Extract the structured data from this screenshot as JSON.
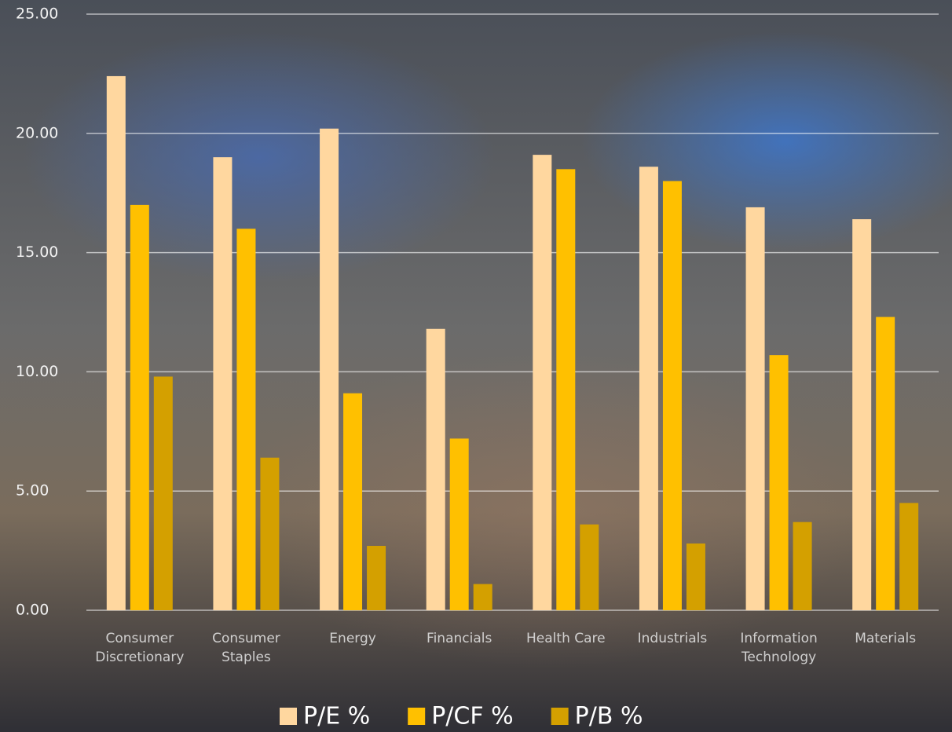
{
  "chart_data": {
    "type": "bar",
    "categories": [
      "Consumer Discretionary",
      "Consumer Staples",
      "Energy",
      "Financials",
      "Health Care",
      "Industrials",
      "Information Technology",
      "Materials"
    ],
    "series": [
      {
        "name": "P/E %",
        "color": "#ffd79f",
        "values": [
          22.4,
          19.0,
          20.2,
          11.8,
          19.1,
          18.6,
          16.9,
          16.4
        ]
      },
      {
        "name": "P/CF %",
        "color": "#ffc000",
        "values": [
          17.0,
          16.0,
          9.1,
          7.2,
          18.5,
          18.0,
          10.7,
          12.3
        ]
      },
      {
        "name": "P/B %",
        "color": "#d4a000",
        "values": [
          9.8,
          6.4,
          2.7,
          1.1,
          3.6,
          2.8,
          3.7,
          4.5
        ]
      }
    ],
    "ylim": [
      0,
      25
    ],
    "yticks": [
      {
        "value": 0,
        "label": "0.00"
      },
      {
        "value": 5,
        "label": "5.00"
      },
      {
        "value": 10,
        "label": "10.00"
      },
      {
        "value": 15,
        "label": "15.00"
      },
      {
        "value": 20,
        "label": "20.00"
      },
      {
        "value": 25,
        "label": "25.00"
      }
    ],
    "grid": true,
    "legend": "bottom"
  }
}
